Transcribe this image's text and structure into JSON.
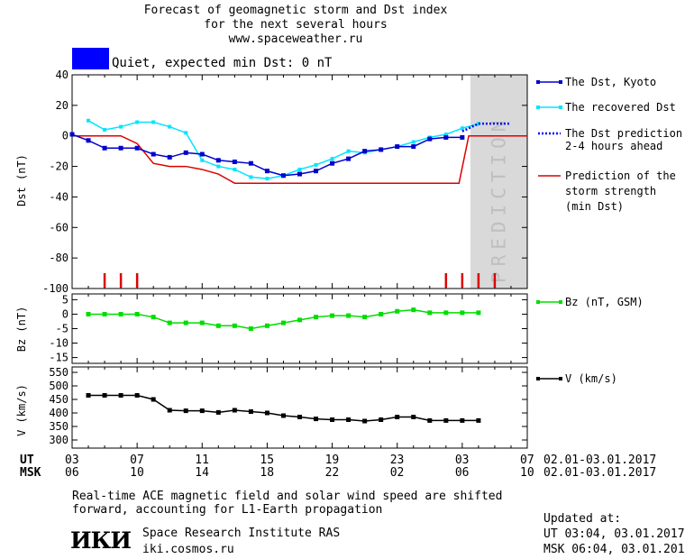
{
  "header": {
    "title_line1": "Forecast of geomagnetic storm and Dst index",
    "title_line2": "for the next several hours",
    "site": "www.spaceweather.ru",
    "status_color": "#0000ff",
    "status_text": "Quiet, expected min Dst: 0 nT"
  },
  "prediction_label": "PREDICTION",
  "legend": {
    "dst_kyoto": "The Dst, Kyoto",
    "dst_recovered": "The recovered Dst",
    "dst_prediction_1": "The Dst prediction",
    "dst_prediction_2": "2-4 hours ahead",
    "storm_1": "Prediction of the",
    "storm_2": "storm strength",
    "storm_3": "(min Dst)",
    "bz": "Bz (nT, GSM)",
    "v": "V (km/s)"
  },
  "time_axis": {
    "ut_label": "UT",
    "msk_label": "MSK",
    "ut_ticks": [
      "03",
      "07",
      "11",
      "15",
      "19",
      "23",
      "03",
      "07"
    ],
    "msk_ticks": [
      "06",
      "10",
      "14",
      "18",
      "22",
      "02",
      "06",
      "10"
    ],
    "ut_range": "02.01-03.01.2017",
    "msk_range": "02.01-03.01.2017"
  },
  "footer": {
    "note_line1": "Real-time ACE magnetic field and solar wind speed are shifted",
    "note_line2": "forward, accounting for L1-Earth propagation",
    "logo": "ИКИ",
    "institute": "Space Research Institute RAS",
    "institute_url": "iki.cosmos.ru",
    "updated_label": "Updated at:",
    "updated_ut": "UT   03:04, 03.01.2017",
    "updated_msk": "MSK 06:04, 03.01.2017"
  },
  "colors": {
    "dst_kyoto": "#0000cc",
    "dst_recovered": "#00e5ff",
    "dst_prediction": "#0000ff",
    "storm_strength": "#dd0000",
    "bz": "#00dd00",
    "v": "#000000",
    "prediction_band": "#d9d9d9"
  },
  "chart_data": [
    {
      "type": "line",
      "ylabel": "Dst (nT)",
      "xlim": [
        0,
        28
      ],
      "ylim": [
        -100,
        40
      ],
      "yticks": [
        40,
        20,
        0,
        -20,
        -40,
        -60,
        -80,
        -100
      ],
      "prediction_band": [
        24.5,
        28
      ],
      "series": [
        {
          "name": "The Dst, Kyoto",
          "style": "line-markers",
          "x": [
            0,
            1,
            2,
            3,
            4,
            5,
            6,
            7,
            8,
            9,
            10,
            11,
            12,
            13,
            14,
            15,
            16,
            17,
            18,
            19,
            20,
            21,
            22,
            23,
            24
          ],
          "y": [
            1,
            -3,
            -8,
            -8,
            -8,
            -12,
            -14,
            -11,
            -12,
            -16,
            -17,
            -18,
            -23,
            -26,
            -25,
            -23,
            -18,
            -15,
            -10,
            -9,
            -7,
            -7,
            -2,
            -1,
            -1
          ]
        },
        {
          "name": "The recovered Dst",
          "style": "line-markers",
          "x": [
            1,
            2,
            3,
            4,
            5,
            6,
            7,
            8,
            9,
            10,
            11,
            12,
            13,
            14,
            15,
            16,
            17,
            18,
            19,
            20,
            21,
            22,
            23,
            24,
            25
          ],
          "y": [
            10,
            4,
            6,
            9,
            9,
            6,
            2,
            -16,
            -20,
            -22,
            -27,
            -28,
            -26,
            -22,
            -19,
            -15,
            -10,
            -11,
            -9,
            -7,
            -4,
            -1,
            1,
            5,
            8
          ]
        },
        {
          "name": "The Dst prediction 2-4 hours ahead",
          "style": "dotted",
          "x": [
            24,
            25,
            26,
            27
          ],
          "y": [
            3,
            8,
            8,
            8
          ]
        },
        {
          "name": "Prediction of the storm strength (min Dst)",
          "style": "step",
          "x": [
            0,
            2,
            3,
            4,
            5,
            6,
            7,
            8,
            9,
            10,
            11,
            12,
            13,
            14,
            15,
            16,
            17,
            18,
            19,
            20,
            21,
            22,
            23,
            23.8,
            24.4,
            28
          ],
          "y": [
            0,
            0,
            0,
            -5,
            -18,
            -20,
            -20,
            -22,
            -25,
            -31,
            -31,
            -31,
            -31,
            -31,
            -31,
            -31,
            -31,
            -31,
            -31,
            -31,
            -31,
            -31,
            -31,
            -31,
            0,
            0
          ]
        }
      ],
      "storm_markers_x": [
        2,
        3,
        4,
        23,
        24,
        25,
        26
      ]
    },
    {
      "type": "line",
      "ylabel": "Bz (nT)",
      "ylim": [
        -17,
        7
      ],
      "yticks": [
        5,
        0,
        -5,
        -10,
        -15
      ],
      "series": [
        {
          "name": "Bz (nT, GSM)",
          "x": [
            1,
            2,
            3,
            4,
            5,
            6,
            7,
            8,
            9,
            10,
            11,
            12,
            13,
            14,
            15,
            16,
            17,
            18,
            19,
            20,
            21,
            22,
            23,
            24,
            25
          ],
          "y": [
            0,
            0,
            0,
            0,
            -1,
            -3,
            -3,
            -3,
            -4,
            -4,
            -5,
            -4,
            -3,
            -2,
            -1,
            -0.5,
            -0.5,
            -1,
            0,
            1,
            1.5,
            0.5,
            0.5,
            0.5,
            0.5
          ]
        }
      ]
    },
    {
      "type": "line",
      "ylabel": "V (km/s)",
      "ylim": [
        270,
        570
      ],
      "yticks": [
        550,
        500,
        450,
        400,
        350,
        300
      ],
      "series": [
        {
          "name": "V (km/s)",
          "x": [
            1,
            2,
            3,
            4,
            5,
            6,
            7,
            8,
            9,
            10,
            11,
            12,
            13,
            14,
            15,
            16,
            17,
            18,
            19,
            20,
            21,
            22,
            23,
            24,
            25
          ],
          "y": [
            465,
            465,
            465,
            465,
            450,
            410,
            408,
            408,
            402,
            410,
            405,
            400,
            390,
            385,
            378,
            375,
            375,
            370,
            375,
            385,
            385,
            372,
            372,
            372,
            372
          ]
        }
      ]
    }
  ]
}
